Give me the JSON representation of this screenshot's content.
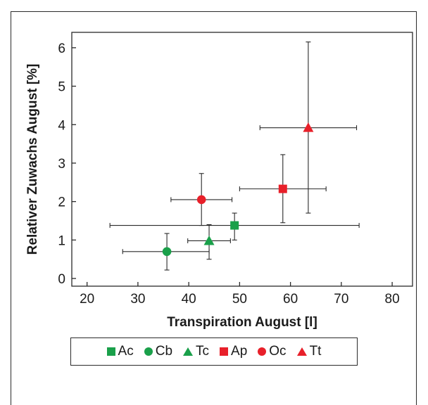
{
  "chart_data": {
    "type": "scatter",
    "xlabel": "Transpiration August [l]",
    "ylabel": "Relativer Zuwachs August [%]",
    "xlim": [
      17,
      84
    ],
    "ylim": [
      -0.2,
      6.4
    ],
    "xticks": [
      20,
      30,
      40,
      50,
      60,
      70,
      80
    ],
    "yticks": [
      0,
      1,
      2,
      3,
      4,
      5,
      6
    ],
    "x_tick_labels": [
      "20",
      "30",
      "40",
      "50",
      "60",
      "70",
      "80"
    ],
    "y_tick_labels": [
      "0",
      "1",
      "2",
      "3",
      "4",
      "5",
      "6"
    ],
    "series": [
      {
        "name": "Ac",
        "marker": "square",
        "color": "#1aa04a",
        "x": 49,
        "y": 1.38,
        "xerr": [
          24.5,
          73.5
        ],
        "yerr": [
          1.0,
          1.7
        ]
      },
      {
        "name": "Cb",
        "marker": "circle",
        "color": "#1aa04a",
        "x": 35.7,
        "y": 0.7,
        "xerr": [
          27,
          44
        ],
        "yerr": [
          0.22,
          1.17
        ]
      },
      {
        "name": "Tc",
        "marker": "triangle",
        "color": "#1aa04a",
        "x": 44,
        "y": 0.98,
        "xerr": [
          39.8,
          48.2
        ],
        "yerr": [
          0.5,
          1.4
        ]
      },
      {
        "name": "Ap",
        "marker": "square",
        "color": "#e8202a",
        "x": 58.5,
        "y": 2.33,
        "xerr": [
          50,
          67
        ],
        "yerr": [
          1.45,
          3.22
        ]
      },
      {
        "name": "Oc",
        "marker": "circle",
        "color": "#e8202a",
        "x": 42.5,
        "y": 2.05,
        "xerr": [
          36.5,
          48.5
        ],
        "yerr": [
          1.38,
          2.73
        ]
      },
      {
        "name": "Tt",
        "marker": "triangle",
        "color": "#e8202a",
        "x": 63.5,
        "y": 3.92,
        "xerr": [
          54,
          73
        ],
        "yerr": [
          1.7,
          6.15
        ]
      }
    ],
    "grid": false,
    "legend_position": "bottom"
  }
}
